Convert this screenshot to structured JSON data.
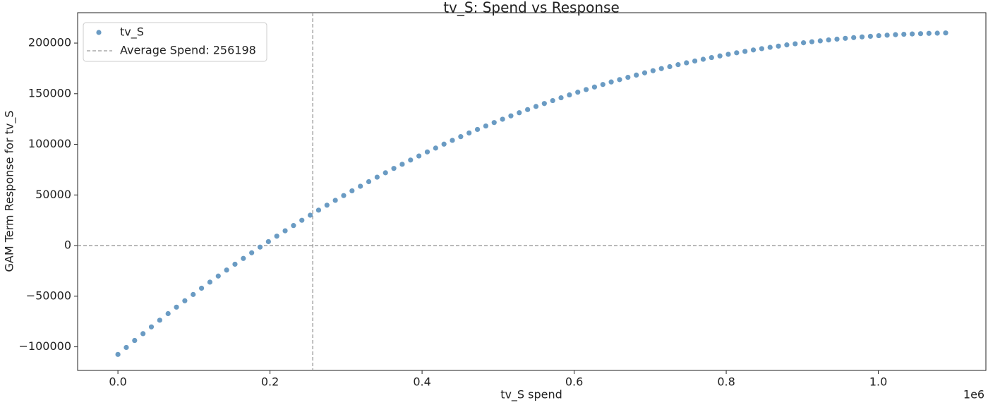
{
  "chart_data": {
    "type": "scatter",
    "title": "tv_S: Spend vs Response",
    "x_label": "tv_S spend",
    "y_label": "GAM Term Response for tv_S",
    "x_offset_label": "1e6",
    "xlim": [
      -53000,
      1141500
    ],
    "ylim": [
      -123300,
      230000
    ],
    "xticks": [
      {
        "value": 0,
        "label": "0.0"
      },
      {
        "value": 200000,
        "label": "0.2"
      },
      {
        "value": 400000,
        "label": "0.4"
      },
      {
        "value": 600000,
        "label": "0.6"
      },
      {
        "value": 800000,
        "label": "0.8"
      },
      {
        "value": 1000000,
        "label": "1.0"
      }
    ],
    "yticks": [
      {
        "value": -100000,
        "label": "−100000"
      },
      {
        "value": -50000,
        "label": "−50000"
      },
      0,
      50000,
      100000,
      150000,
      200000
    ],
    "legend_position": "upper left",
    "reference_lines": [
      {
        "axis": "x",
        "value": 256198,
        "name": "Average Spend: 256198",
        "color": "#999999"
      },
      {
        "axis": "y",
        "value": 0,
        "color": "#999999"
      }
    ],
    "series": [
      {
        "name": "tv_S",
        "color": "#6a9bc3",
        "x": [
          0,
          10996,
          21992,
          32988,
          43984,
          54980,
          65976,
          76972,
          87968,
          98964,
          109960,
          120956,
          131952,
          142948,
          153944,
          164940,
          175936,
          186932,
          197928,
          208924,
          219920,
          230916,
          241912,
          252908,
          263904,
          274900,
          285896,
          296892,
          307888,
          318884,
          329880,
          340876,
          351872,
          362868,
          373864,
          384860,
          395856,
          406852,
          417848,
          428844,
          439840,
          450836,
          461832,
          472828,
          483824,
          494820,
          505816,
          516812,
          527808,
          538804,
          549800,
          560796,
          571792,
          582788,
          593784,
          604780,
          615776,
          626772,
          637768,
          648764,
          659760,
          670756,
          681752,
          692748,
          703744,
          714740,
          725736,
          736732,
          747728,
          758724,
          769720,
          780716,
          791712,
          802708,
          813704,
          824700,
          835696,
          846692,
          857688,
          868684,
          879680,
          890676,
          901672,
          912668,
          923664,
          934660,
          945656,
          956652,
          967648,
          978644,
          989640,
          1000636,
          1011632,
          1022628,
          1033624,
          1044620,
          1055616,
          1066612,
          1077608,
          1088604
        ],
        "values": [
          -107500,
          -100600,
          -93700,
          -87000,
          -80300,
          -73700,
          -67200,
          -60800,
          -54500,
          -48300,
          -42100,
          -36100,
          -30100,
          -24200,
          -18400,
          -12700,
          -7100,
          -1500,
          3900,
          9300,
          14600,
          19800,
          25000,
          30000,
          35000,
          39900,
          44700,
          49400,
          54100,
          58600,
          63100,
          67600,
          71900,
          76200,
          80300,
          84500,
          88500,
          92500,
          96300,
          100200,
          103900,
          107600,
          111200,
          114700,
          118100,
          121500,
          124800,
          128100,
          131200,
          134300,
          137400,
          140300,
          143200,
          146000,
          148800,
          151500,
          154100,
          156600,
          159100,
          161600,
          163900,
          166200,
          168400,
          170600,
          172700,
          174800,
          176700,
          178700,
          180500,
          182300,
          184000,
          185700,
          187300,
          188900,
          190400,
          191800,
          193200,
          194500,
          195800,
          197000,
          198200,
          199300,
          200300,
          201300,
          202200,
          203100,
          203900,
          204700,
          205400,
          206100,
          206700,
          207300,
          207800,
          208300,
          208700,
          209000,
          209300,
          209600,
          209800,
          210000
        ]
      }
    ]
  }
}
